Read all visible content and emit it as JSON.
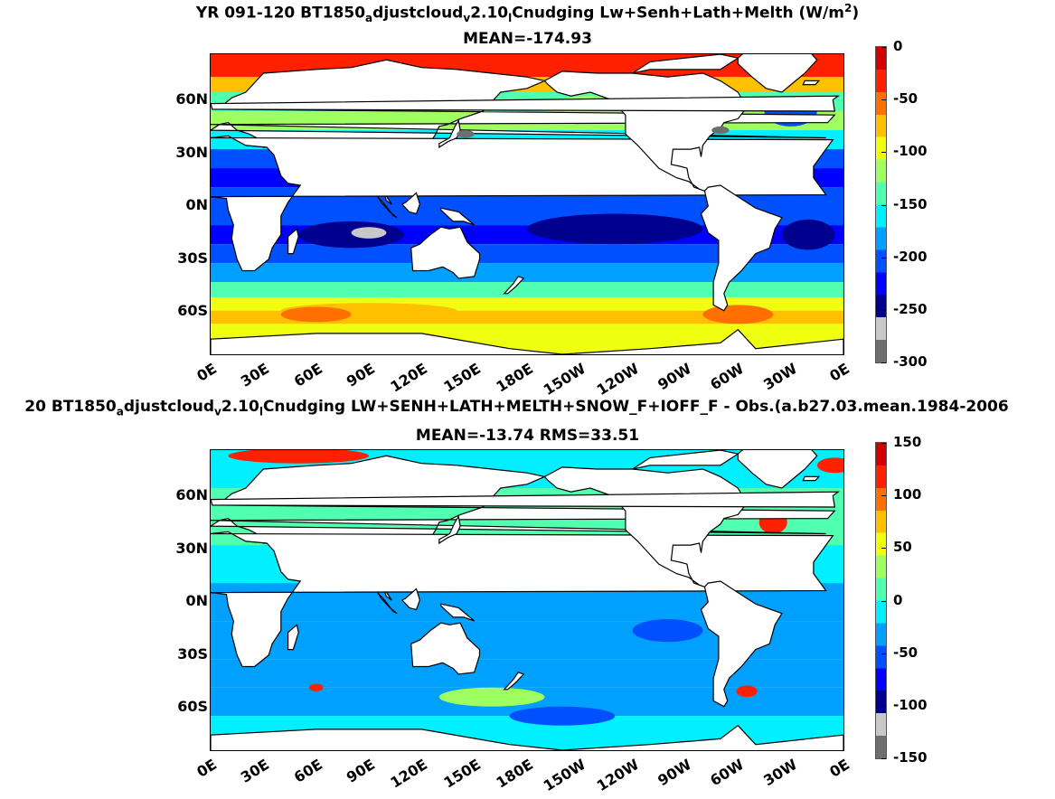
{
  "panel1": {
    "title_pre": "YR 091-120 BT1850",
    "title_sub1": "a",
    "title_mid1": "djustcloud",
    "title_sub2": "v",
    "title_mid2": "2.10",
    "title_sub3": "l",
    "title_mid3": "Cnudging Lw+Senh+Lath+Melth (W/m",
    "title_sup": "2",
    "title_end": ")",
    "subtitle": "MEAN=-174.93",
    "colorbar_labels": [
      "0",
      "-50",
      "-100",
      "-150",
      "-200",
      "-250",
      "-300"
    ]
  },
  "panel2": {
    "title_pre": "20 BT1850",
    "title_sub1": "a",
    "title_mid1": "djustcloud",
    "title_sub2": "v",
    "title_mid2": "2.10",
    "title_sub3": "l",
    "title_mid3": "Cnudging LW+SENH+LATH+MELTH+SNOW_F+IOFF_F - Obs.(a.b27.03.mean.1984-2006",
    "subtitle": "MEAN=-13.74 RMS=33.51",
    "colorbar_labels": [
      "150",
      "100",
      "50",
      "0",
      "-50",
      "-100",
      "-150"
    ]
  },
  "axes": {
    "lat_labels": [
      "60N",
      "30N",
      "0N",
      "30S",
      "60S"
    ],
    "lon_labels": [
      "0E",
      "30E",
      "60E",
      "90E",
      "120E",
      "150E",
      "180E",
      "150W",
      "120W",
      "90W",
      "60W",
      "30W",
      "0E"
    ]
  },
  "colors": {
    "jet": [
      "#00008f",
      "#0000ff",
      "#0050ff",
      "#00a0ff",
      "#00f0ff",
      "#50ffb0",
      "#a0ff60",
      "#f0ff10",
      "#ffc000",
      "#ff7000",
      "#ff2000",
      "#d00000"
    ],
    "land": "#ffffff",
    "coast": "#000000",
    "mask_gray": "#6e6e6e"
  }
}
